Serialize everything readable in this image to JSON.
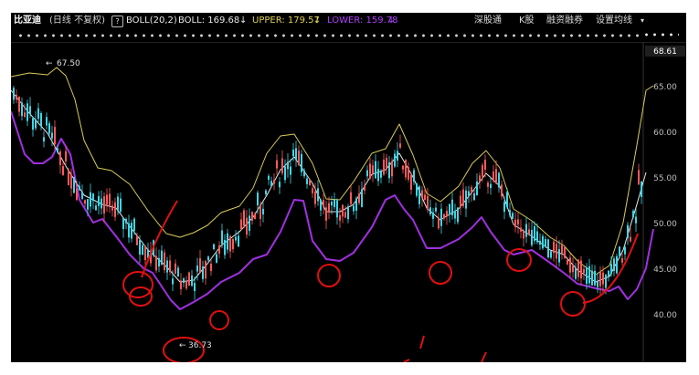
{
  "header": {
    "stock_name": "比亚迪",
    "period": "(日线 不复权)",
    "help_glyph": "?",
    "boll_param": "BOLL(20,2)",
    "boll_value": "BOLL: 169.68",
    "upper_value": "UPPER: 179.57",
    "lower_value": "LOWER: 159.78",
    "menu": [
      "深股通",
      "K股",
      "融资融券",
      "设置均线"
    ],
    "down_arrow": "↓",
    "dropdown_glyph": "▾",
    "colors": {
      "boll": "#e6e6e6",
      "upper": "#e0d250",
      "lower": "#b13cff"
    }
  },
  "price_axis": {
    "current_price": "68.61",
    "ticks": [
      "65.00",
      "60.00",
      "55.00",
      "50.00",
      "45.00",
      "40.00"
    ]
  },
  "annotations": {
    "high_label": "67.50",
    "low_label": "36.73",
    "high_arrow": "←",
    "low_arrow": "←"
  },
  "chart_data": {
    "type": "line",
    "ylim": [
      38,
      68.61
    ],
    "series_colors": {
      "upper": "#d8cc58",
      "middle": "#e8e8e8",
      "lower": "#a030e0",
      "candle_up": "#ff5a5a",
      "candle_down": "#3fd6e6",
      "marker": "#e01010"
    },
    "middle": [
      [
        0,
        64.5
      ],
      [
        20,
        62
      ],
      [
        40,
        59.8
      ],
      [
        60,
        56.2
      ],
      [
        80,
        53
      ],
      [
        100,
        52
      ],
      [
        115,
        51.6
      ],
      [
        130,
        49.6
      ],
      [
        150,
        47
      ],
      [
        170,
        45.2
      ],
      [
        185,
        43.5
      ],
      [
        200,
        43.7
      ],
      [
        215,
        45.5
      ],
      [
        230,
        47.5
      ],
      [
        250,
        49
      ],
      [
        265,
        50.6
      ],
      [
        280,
        53
      ],
      [
        295,
        55.8
      ],
      [
        310,
        57.2
      ],
      [
        330,
        54.3
      ],
      [
        345,
        51.2
      ],
      [
        360,
        51.2
      ],
      [
        375,
        52
      ],
      [
        395,
        55.3
      ],
      [
        410,
        55.8
      ],
      [
        425,
        57.6
      ],
      [
        440,
        55
      ],
      [
        455,
        51.6
      ],
      [
        470,
        50.3
      ],
      [
        490,
        51.5
      ],
      [
        505,
        53.4
      ],
      [
        520,
        55.4
      ],
      [
        535,
        54
      ],
      [
        550,
        49.8
      ],
      [
        570,
        48.5
      ],
      [
        590,
        47
      ],
      [
        605,
        46.5
      ],
      [
        620,
        44.8
      ],
      [
        640,
        43.5
      ],
      [
        655,
        44.1
      ],
      [
        670,
        47
      ],
      [
        685,
        52
      ],
      [
        695,
        55.5
      ]
    ],
    "upper": [
      [
        0,
        66
      ],
      [
        20,
        66.4
      ],
      [
        40,
        66.2
      ],
      [
        50,
        67
      ],
      [
        60,
        66.1
      ],
      [
        70,
        63.5
      ],
      [
        80,
        59
      ],
      [
        95,
        56
      ],
      [
        110,
        55.7
      ],
      [
        130,
        54.2
      ],
      [
        150,
        51.3
      ],
      [
        170,
        48.8
      ],
      [
        185,
        48.4
      ],
      [
        200,
        48.9
      ],
      [
        215,
        49.7
      ],
      [
        230,
        51.1
      ],
      [
        250,
        51.8
      ],
      [
        265,
        53.8
      ],
      [
        280,
        57.6
      ],
      [
        295,
        59.5
      ],
      [
        310,
        59.7
      ],
      [
        330,
        56.5
      ],
      [
        345,
        52.6
      ],
      [
        360,
        52.5
      ],
      [
        375,
        54.5
      ],
      [
        395,
        57.6
      ],
      [
        410,
        58.1
      ],
      [
        425,
        60.8
      ],
      [
        440,
        57.4
      ],
      [
        455,
        53.2
      ],
      [
        470,
        52.3
      ],
      [
        490,
        54
      ],
      [
        505,
        56.5
      ],
      [
        520,
        57.9
      ],
      [
        535,
        56
      ],
      [
        550,
        51.5
      ],
      [
        570,
        50.2
      ],
      [
        590,
        48.4
      ],
      [
        605,
        47.5
      ],
      [
        620,
        45.8
      ],
      [
        640,
        44.3
      ],
      [
        655,
        45.3
      ],
      [
        670,
        50
      ],
      [
        685,
        58.5
      ],
      [
        695,
        64.5
      ],
      [
        703,
        65
      ]
    ],
    "lower": [
      [
        0,
        62.2
      ],
      [
        15,
        57.5
      ],
      [
        25,
        56.5
      ],
      [
        35,
        56.5
      ],
      [
        45,
        57.2
      ],
      [
        55,
        59.2
      ],
      [
        65,
        57.5
      ],
      [
        75,
        52.5
      ],
      [
        90,
        50
      ],
      [
        100,
        50.4
      ],
      [
        115,
        48.5
      ],
      [
        130,
        46.5
      ],
      [
        145,
        45
      ],
      [
        155,
        44.5
      ],
      [
        165,
        43
      ],
      [
        175,
        41.5
      ],
      [
        185,
        40.5
      ],
      [
        200,
        41.3
      ],
      [
        215,
        42.2
      ],
      [
        230,
        43.5
      ],
      [
        250,
        44.5
      ],
      [
        265,
        46
      ],
      [
        280,
        46.5
      ],
      [
        295,
        49
      ],
      [
        310,
        52.5
      ],
      [
        320,
        52.4
      ],
      [
        330,
        48
      ],
      [
        345,
        46
      ],
      [
        360,
        45.8
      ],
      [
        375,
        46.7
      ],
      [
        395,
        49.5
      ],
      [
        410,
        52.5
      ],
      [
        420,
        53
      ],
      [
        430,
        51.5
      ],
      [
        440,
        50.3
      ],
      [
        455,
        47.2
      ],
      [
        470,
        47.2
      ],
      [
        490,
        48.2
      ],
      [
        505,
        49.5
      ],
      [
        515,
        50.6
      ],
      [
        525,
        49
      ],
      [
        540,
        47
      ],
      [
        550,
        46.5
      ],
      [
        570,
        47
      ],
      [
        590,
        45.6
      ],
      [
        605,
        44.5
      ],
      [
        620,
        43.3
      ],
      [
        640,
        42.8
      ],
      [
        655,
        42.5
      ],
      [
        665,
        43
      ],
      [
        675,
        41.6
      ],
      [
        685,
        42.7
      ],
      [
        695,
        45
      ],
      [
        703,
        49.3
      ]
    ]
  }
}
